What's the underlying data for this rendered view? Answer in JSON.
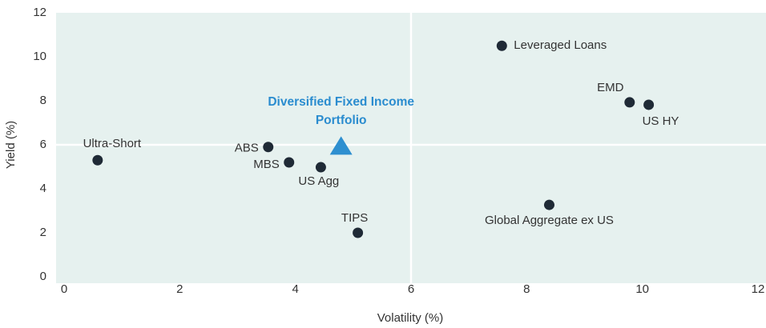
{
  "chart_data": {
    "type": "scatter",
    "x_label": "Volatility (%)",
    "y_label": "Yield (%)",
    "xlim": [
      0,
      12
    ],
    "ylim": [
      0,
      12
    ],
    "xticks": [
      0,
      2,
      4,
      6,
      8,
      10,
      12
    ],
    "yticks": [
      0,
      2,
      4,
      6,
      8,
      10,
      12
    ],
    "reference_lines": {
      "x": 6,
      "y": 6
    },
    "background_color": "#e6f1ef",
    "color": "#1f2a36",
    "points": [
      {
        "label": "Ultra-Short",
        "x": 0.58,
        "y": 5.3
      },
      {
        "label": "ABS",
        "x": 3.53,
        "y": 5.9
      },
      {
        "label": "MBS",
        "x": 3.89,
        "y": 5.2
      },
      {
        "label": "US Agg",
        "x": 4.44,
        "y": 4.98
      },
      {
        "label": "TIPS",
        "x": 5.08,
        "y": 2.0
      },
      {
        "label": "Leveraged Loans",
        "x": 7.57,
        "y": 10.5
      },
      {
        "label": "EMD",
        "x": 9.78,
        "y": 7.93
      },
      {
        "label": "US HY",
        "x": 10.11,
        "y": 7.82
      },
      {
        "label": "Global Aggregate ex US",
        "x": 8.39,
        "y": 3.27
      }
    ],
    "highlight": {
      "label": "Diversified Fixed Income Portfolio",
      "x": 4.79,
      "y": 5.95,
      "color": "#2e8fd0"
    }
  }
}
